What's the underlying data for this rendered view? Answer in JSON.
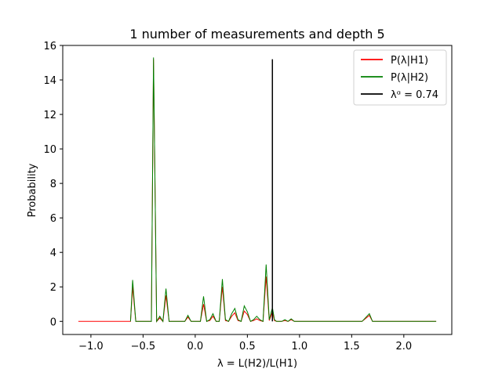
{
  "chart_data": {
    "type": "line",
    "title": "1 number of measurements and depth 5",
    "xlabel": "λ = L(H2)/L(H1)",
    "ylabel": "Probability",
    "xlim": [
      -1.27,
      2.46
    ],
    "ylim": [
      -0.76,
      16
    ],
    "xticks": [
      -1.0,
      -0.5,
      0.0,
      0.5,
      1.0,
      1.5,
      2.0
    ],
    "xtick_labels": [
      "−1.0",
      "−0.5",
      "0.0",
      "0.5",
      "1.0",
      "1.5",
      "2.0"
    ],
    "yticks": [
      0,
      2,
      4,
      6,
      8,
      10,
      12,
      14,
      16
    ],
    "ytick_labels": [
      "0",
      "2",
      "4",
      "6",
      "8",
      "10",
      "12",
      "14",
      "16"
    ],
    "grid": false,
    "legend_position": "top-right",
    "series": [
      {
        "name": "P(λ|H1)",
        "color": "#ff0000",
        "x": [
          -1.12,
          -0.62,
          -0.6,
          -0.57,
          -0.52,
          -0.42,
          -0.4,
          -0.37,
          -0.34,
          -0.31,
          -0.28,
          -0.25,
          -0.22,
          -0.19,
          -0.1,
          -0.07,
          -0.04,
          -0.01,
          0.02,
          0.05,
          0.08,
          0.11,
          0.14,
          0.17,
          0.2,
          0.23,
          0.26,
          0.29,
          0.32,
          0.35,
          0.38,
          0.41,
          0.44,
          0.47,
          0.5,
          0.53,
          0.56,
          0.59,
          0.62,
          0.65,
          0.68,
          0.71,
          0.74,
          0.76,
          0.78,
          0.8,
          0.83,
          0.86,
          0.89,
          0.92,
          0.95,
          0.98,
          1.01,
          1.04,
          1.07,
          1.1,
          1.2,
          1.4,
          1.6,
          1.67,
          1.7,
          1.73,
          1.8,
          2.0,
          2.31
        ],
        "y": [
          0,
          0,
          2.0,
          0,
          0,
          0,
          15.2,
          0,
          0.2,
          0,
          1.5,
          0,
          0,
          0,
          0,
          0.25,
          0,
          0,
          0,
          0,
          1.0,
          0,
          0.05,
          0.3,
          0,
          0,
          2.0,
          0.05,
          0,
          0.3,
          0.5,
          0.05,
          0,
          0.6,
          0.4,
          0,
          0.05,
          0.15,
          0.05,
          0,
          2.6,
          0.05,
          0.55,
          0.05,
          0,
          0,
          0,
          0.05,
          0,
          0.1,
          0,
          0,
          0,
          0,
          0,
          0,
          0,
          0,
          0,
          0.35,
          0,
          0,
          0,
          0,
          0
        ]
      },
      {
        "name": "P(λ|H2)",
        "color": "#008000",
        "x": [
          -0.62,
          -0.6,
          -0.57,
          -0.52,
          -0.42,
          -0.4,
          -0.37,
          -0.34,
          -0.31,
          -0.28,
          -0.25,
          -0.22,
          -0.19,
          -0.1,
          -0.07,
          -0.04,
          -0.01,
          0.02,
          0.05,
          0.08,
          0.11,
          0.14,
          0.17,
          0.2,
          0.23,
          0.26,
          0.29,
          0.32,
          0.35,
          0.38,
          0.41,
          0.44,
          0.47,
          0.5,
          0.53,
          0.56,
          0.59,
          0.62,
          0.65,
          0.68,
          0.71,
          0.74,
          0.76,
          0.78,
          0.8,
          0.83,
          0.86,
          0.89,
          0.92,
          0.95,
          0.98,
          1.01,
          1.04,
          1.07,
          1.1,
          1.2,
          1.4,
          1.6,
          1.67,
          1.7,
          1.73,
          1.8,
          2.0,
          2.31
        ],
        "y": [
          0,
          2.4,
          0,
          0,
          0,
          15.3,
          0,
          0.3,
          0,
          1.9,
          0,
          0,
          0,
          0,
          0.35,
          0,
          0,
          0,
          0,
          1.45,
          0,
          0.1,
          0.45,
          0,
          0,
          2.45,
          0.1,
          0,
          0.45,
          0.75,
          0.1,
          0,
          0.9,
          0.55,
          0,
          0.1,
          0.3,
          0.1,
          0,
          3.3,
          0.1,
          0.8,
          0.1,
          0,
          0,
          0,
          0.1,
          0,
          0.15,
          0,
          0,
          0,
          0,
          0,
          0,
          0,
          0,
          0,
          0.45,
          0,
          0,
          0,
          0,
          0
        ]
      }
    ],
    "vline": {
      "name": "λᵅ = 0.74",
      "x": 0.74,
      "y0": 0,
      "y1": 15.2,
      "color": "#000000"
    }
  }
}
